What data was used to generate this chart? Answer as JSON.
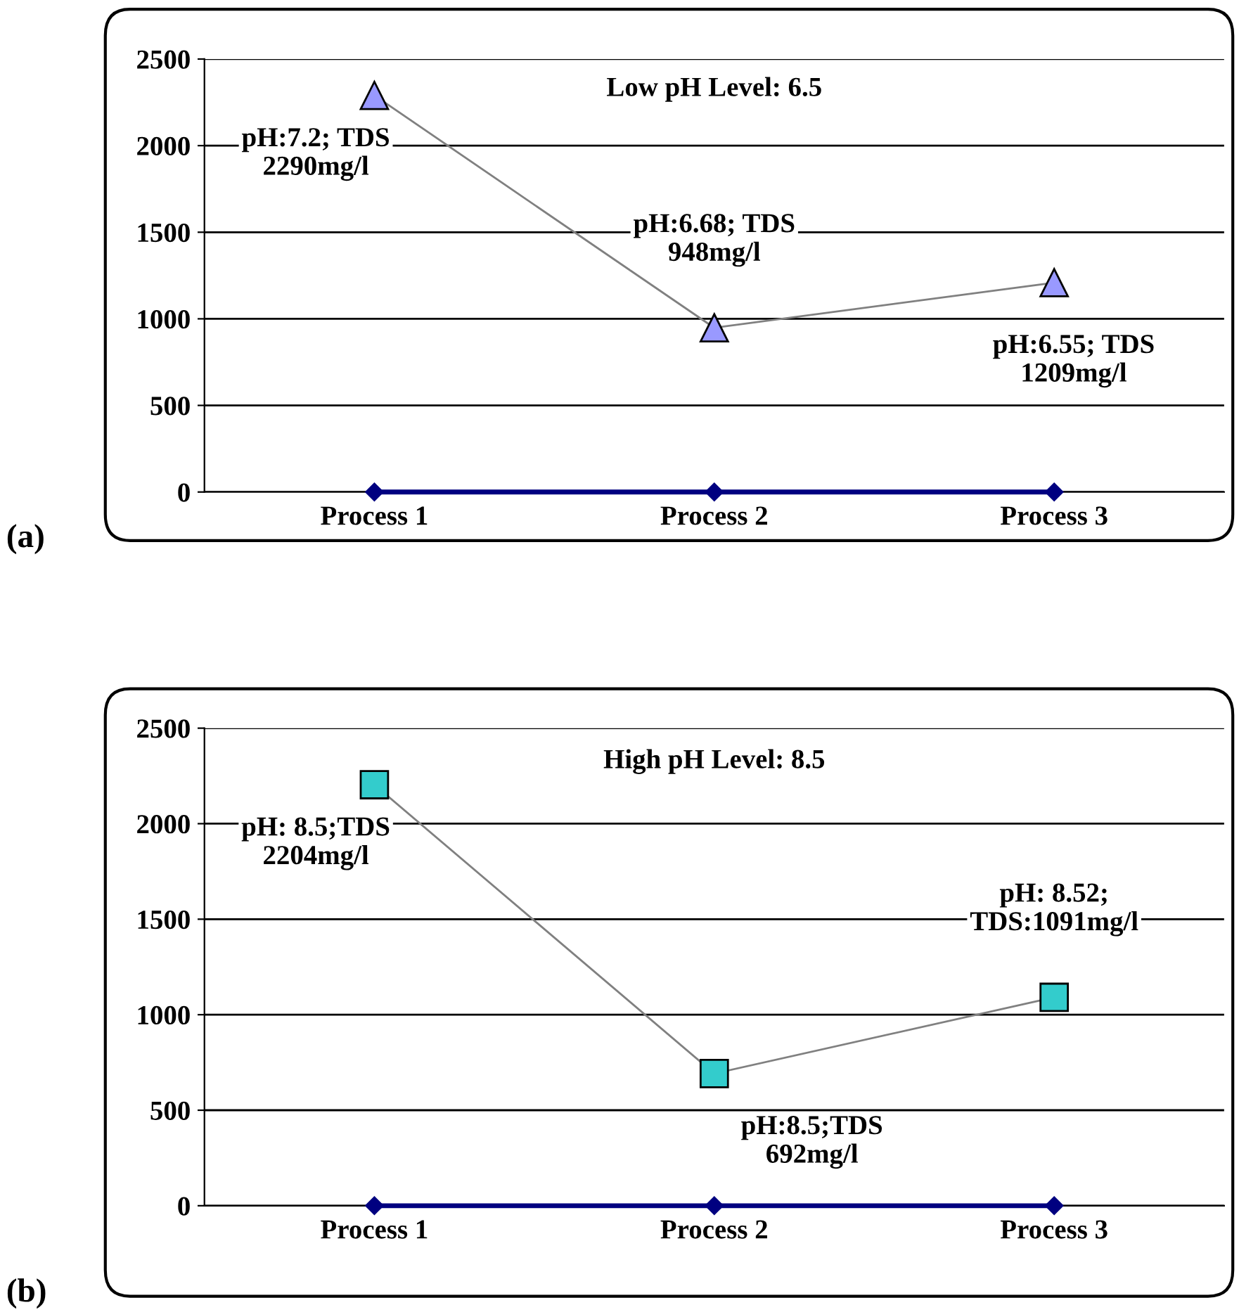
{
  "chart_data": [
    {
      "type": "line",
      "title": "Low pH Level: 6.5",
      "categories": [
        "Process 1",
        "Process 2",
        "Process 3"
      ],
      "ylim": [
        0,
        2500
      ],
      "yticks": [
        0,
        500,
        1000,
        1500,
        2000,
        2500
      ],
      "grid": "y",
      "series": [
        {
          "color": "#9999ff",
          "marker": "triangle",
          "values": [
            2290,
            948,
            1209
          ]
        },
        {
          "color": "#000080",
          "marker": "diamond",
          "values": [
            0,
            0,
            0
          ]
        }
      ],
      "annotations": [
        {
          "text": "pH:7.2; TDS\n2290mg/l",
          "x": "Process 1",
          "y": 2290
        },
        {
          "text": "pH:6.68; TDS\n948mg/l",
          "x": "Process 2",
          "y": 948
        },
        {
          "text": "pH:6.55; TDS\n1209mg/l",
          "x": "Process 3",
          "y": 1209
        },
        "(a)"
      ]
    },
    {
      "type": "line",
      "title": "High pH Level: 8.5",
      "categories": [
        "Process 1",
        "Process 2",
        "Process 3"
      ],
      "ylim": [
        0,
        2500
      ],
      "yticks": [
        0,
        500,
        1000,
        1500,
        2000,
        2500
      ],
      "grid": "y",
      "series": [
        {
          "color": "#33cccc",
          "marker": "square",
          "values": [
            2204,
            692,
            1091
          ]
        },
        {
          "color": "#000080",
          "marker": "diamond",
          "values": [
            0,
            0,
            0
          ]
        }
      ],
      "annotations": [
        {
          "text": "pH: 8.5;TDS\n2204mg/l",
          "x": "Process 1",
          "y": 2204
        },
        {
          "text": "pH:8.5;TDS\n692mg/l",
          "x": "Process 2",
          "y": 692
        },
        {
          "text": "pH: 8.52;\nTDS:1091mg/l",
          "x": "Process 3",
          "y": 1091
        },
        "(b)"
      ]
    }
  ]
}
